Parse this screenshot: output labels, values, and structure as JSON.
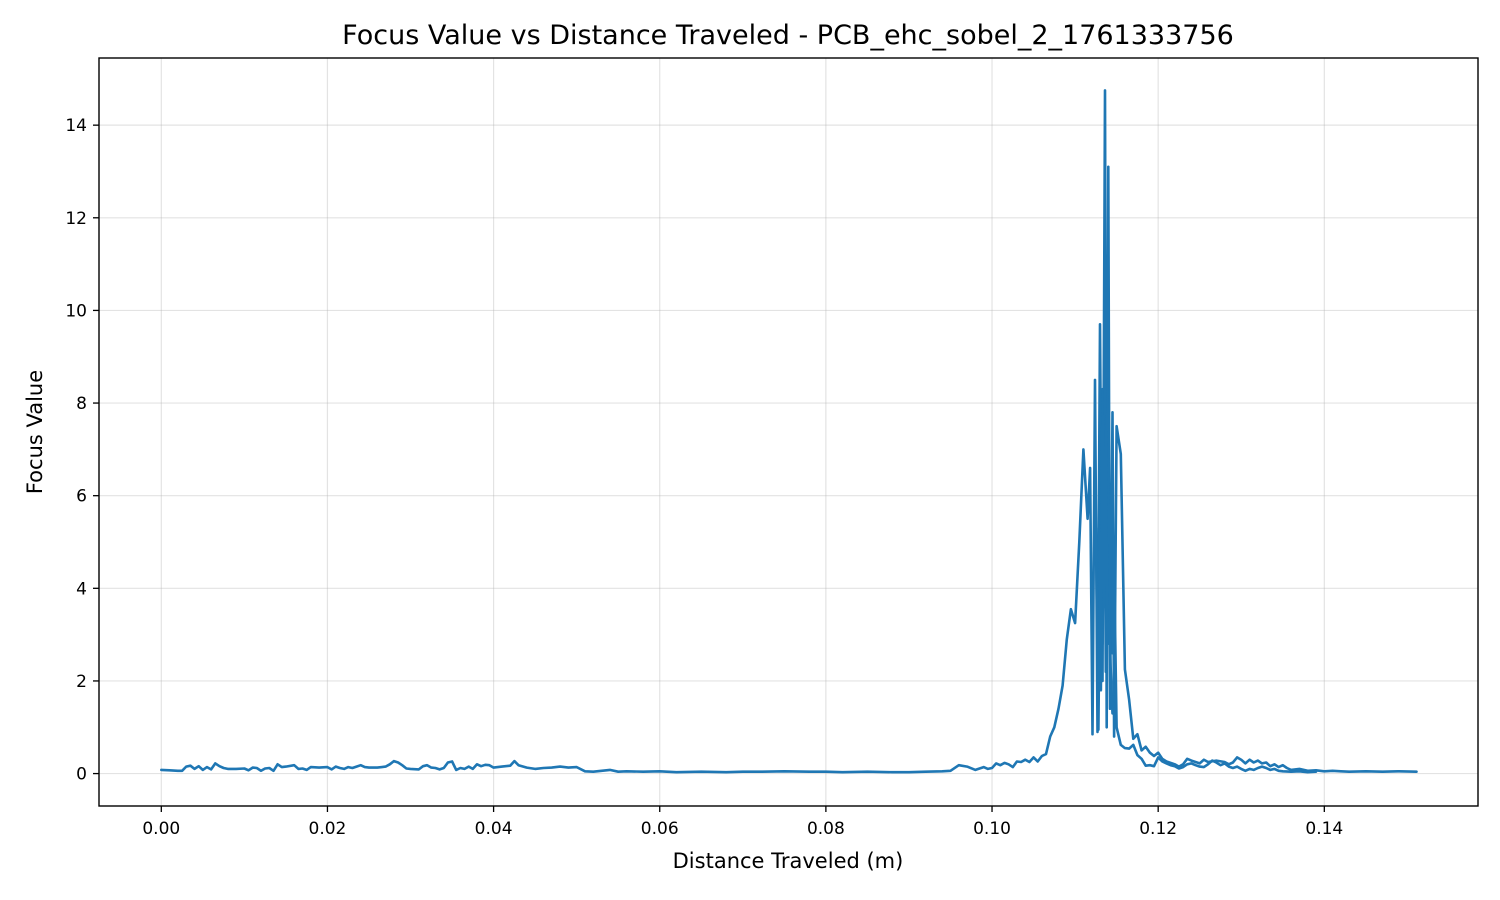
{
  "chart_data": {
    "type": "line",
    "title": "Focus Value vs Distance Traveled - PCB_ehc_sobel_2_1761333756",
    "xlabel": "Distance Traveled (m)",
    "ylabel": "Focus Value",
    "xlim": [
      -0.0075,
      0.1585
    ],
    "ylim": [
      -0.7,
      15.45
    ],
    "x_ticks": [
      0.0,
      0.02,
      0.04,
      0.06,
      0.08,
      0.1,
      0.12,
      0.14
    ],
    "x_tick_labels": [
      "0.00",
      "0.02",
      "0.04",
      "0.06",
      "0.08",
      "0.10",
      "0.12",
      "0.14"
    ],
    "y_ticks": [
      0,
      2,
      4,
      6,
      8,
      10,
      12,
      14
    ],
    "y_tick_labels": [
      "0",
      "2",
      "4",
      "6",
      "8",
      "10",
      "12",
      "14"
    ],
    "grid": true,
    "legend": "none",
    "series": [
      {
        "color": "#1f77b4",
        "points": [
          [
            0.0,
            0.08
          ],
          [
            0.001,
            0.07
          ],
          [
            0.002,
            0.06
          ],
          [
            0.0025,
            0.06
          ],
          [
            0.003,
            0.15
          ],
          [
            0.0035,
            0.17
          ],
          [
            0.004,
            0.1
          ],
          [
            0.0045,
            0.16
          ],
          [
            0.005,
            0.08
          ],
          [
            0.0055,
            0.14
          ],
          [
            0.006,
            0.09
          ],
          [
            0.0065,
            0.22
          ],
          [
            0.007,
            0.16
          ],
          [
            0.0075,
            0.12
          ],
          [
            0.008,
            0.1
          ],
          [
            0.009,
            0.1
          ],
          [
            0.01,
            0.11
          ],
          [
            0.0105,
            0.07
          ],
          [
            0.011,
            0.13
          ],
          [
            0.0115,
            0.12
          ],
          [
            0.012,
            0.06
          ],
          [
            0.0125,
            0.11
          ],
          [
            0.013,
            0.12
          ],
          [
            0.0135,
            0.06
          ],
          [
            0.014,
            0.2
          ],
          [
            0.0145,
            0.14
          ],
          [
            0.015,
            0.15
          ],
          [
            0.016,
            0.18
          ],
          [
            0.0165,
            0.1
          ],
          [
            0.017,
            0.11
          ],
          [
            0.0175,
            0.08
          ],
          [
            0.018,
            0.14
          ],
          [
            0.019,
            0.13
          ],
          [
            0.02,
            0.14
          ],
          [
            0.0205,
            0.09
          ],
          [
            0.021,
            0.15
          ],
          [
            0.0215,
            0.12
          ],
          [
            0.022,
            0.1
          ],
          [
            0.0225,
            0.14
          ],
          [
            0.023,
            0.12
          ],
          [
            0.0235,
            0.15
          ],
          [
            0.024,
            0.18
          ],
          [
            0.0245,
            0.14
          ],
          [
            0.025,
            0.13
          ],
          [
            0.026,
            0.13
          ],
          [
            0.027,
            0.15
          ],
          [
            0.0275,
            0.2
          ],
          [
            0.028,
            0.27
          ],
          [
            0.0285,
            0.24
          ],
          [
            0.029,
            0.18
          ],
          [
            0.0295,
            0.11
          ],
          [
            0.03,
            0.1
          ],
          [
            0.031,
            0.09
          ],
          [
            0.0315,
            0.16
          ],
          [
            0.032,
            0.18
          ],
          [
            0.0325,
            0.13
          ],
          [
            0.033,
            0.12
          ],
          [
            0.0335,
            0.09
          ],
          [
            0.034,
            0.12
          ],
          [
            0.0345,
            0.24
          ],
          [
            0.035,
            0.26
          ],
          [
            0.0355,
            0.08
          ],
          [
            0.036,
            0.12
          ],
          [
            0.0365,
            0.1
          ],
          [
            0.037,
            0.15
          ],
          [
            0.0375,
            0.1
          ],
          [
            0.038,
            0.2
          ],
          [
            0.0385,
            0.16
          ],
          [
            0.039,
            0.19
          ],
          [
            0.0395,
            0.18
          ],
          [
            0.04,
            0.13
          ],
          [
            0.041,
            0.15
          ],
          [
            0.042,
            0.17
          ],
          [
            0.0425,
            0.27
          ],
          [
            0.043,
            0.18
          ],
          [
            0.044,
            0.13
          ],
          [
            0.045,
            0.1
          ],
          [
            0.046,
            0.12
          ],
          [
            0.047,
            0.13
          ],
          [
            0.048,
            0.15
          ],
          [
            0.049,
            0.13
          ],
          [
            0.05,
            0.14
          ],
          [
            0.051,
            0.05
          ],
          [
            0.052,
            0.04
          ],
          [
            0.053,
            0.06
          ],
          [
            0.054,
            0.08
          ],
          [
            0.055,
            0.04
          ],
          [
            0.056,
            0.05
          ],
          [
            0.058,
            0.04
          ],
          [
            0.06,
            0.05
          ],
          [
            0.062,
            0.03
          ],
          [
            0.065,
            0.04
          ],
          [
            0.068,
            0.03
          ],
          [
            0.07,
            0.04
          ],
          [
            0.072,
            0.04
          ],
          [
            0.075,
            0.05
          ],
          [
            0.078,
            0.04
          ],
          [
            0.08,
            0.04
          ],
          [
            0.082,
            0.03
          ],
          [
            0.085,
            0.04
          ],
          [
            0.088,
            0.03
          ],
          [
            0.09,
            0.03
          ],
          [
            0.092,
            0.04
          ],
          [
            0.094,
            0.05
          ],
          [
            0.095,
            0.06
          ],
          [
            0.096,
            0.18
          ],
          [
            0.097,
            0.15
          ],
          [
            0.098,
            0.08
          ],
          [
            0.099,
            0.14
          ],
          [
            0.0995,
            0.1
          ],
          [
            0.1,
            0.12
          ],
          [
            0.1005,
            0.22
          ],
          [
            0.101,
            0.18
          ],
          [
            0.1015,
            0.23
          ],
          [
            0.102,
            0.2
          ],
          [
            0.1025,
            0.14
          ],
          [
            0.103,
            0.26
          ],
          [
            0.1035,
            0.25
          ],
          [
            0.104,
            0.3
          ],
          [
            0.1045,
            0.25
          ],
          [
            0.105,
            0.35
          ],
          [
            0.1055,
            0.26
          ],
          [
            0.106,
            0.38
          ],
          [
            0.1065,
            0.42
          ],
          [
            0.107,
            0.8
          ],
          [
            0.1075,
            1.0
          ],
          [
            0.108,
            1.4
          ],
          [
            0.1085,
            1.9
          ],
          [
            0.109,
            2.9
          ],
          [
            0.1095,
            3.55
          ],
          [
            0.11,
            3.25
          ],
          [
            0.1105,
            5.0
          ],
          [
            0.111,
            7.0
          ],
          [
            0.1115,
            5.5
          ],
          [
            0.1118,
            6.6
          ],
          [
            0.1121,
            0.85
          ],
          [
            0.1124,
            8.5
          ],
          [
            0.1127,
            0.9
          ],
          [
            0.113,
            9.7
          ],
          [
            0.1133,
            2.0
          ],
          [
            0.1136,
            14.75
          ],
          [
            0.1138,
            1.0
          ],
          [
            0.114,
            13.1
          ],
          [
            0.1142,
            1.4
          ],
          [
            0.1145,
            7.8
          ],
          [
            0.1147,
            0.8
          ],
          [
            0.115,
            7.5
          ],
          [
            0.1155,
            6.9
          ],
          [
            0.116,
            2.25
          ],
          [
            0.1165,
            1.6
          ],
          [
            0.117,
            0.75
          ],
          [
            0.1175,
            0.85
          ],
          [
            0.118,
            0.5
          ],
          [
            0.1185,
            0.58
          ],
          [
            0.119,
            0.45
          ],
          [
            0.1195,
            0.38
          ],
          [
            0.12,
            0.45
          ],
          [
            0.1205,
            0.32
          ],
          [
            0.121,
            0.26
          ],
          [
            0.122,
            0.2
          ],
          [
            0.1225,
            0.15
          ],
          [
            0.123,
            0.2
          ],
          [
            0.1235,
            0.32
          ],
          [
            0.124,
            0.28
          ],
          [
            0.125,
            0.22
          ],
          [
            0.1255,
            0.3
          ],
          [
            0.126,
            0.25
          ],
          [
            0.127,
            0.28
          ],
          [
            0.128,
            0.25
          ],
          [
            0.1285,
            0.2
          ],
          [
            0.129,
            0.24
          ],
          [
            0.1295,
            0.35
          ],
          [
            0.13,
            0.3
          ],
          [
            0.1305,
            0.22
          ],
          [
            0.131,
            0.3
          ],
          [
            0.1315,
            0.24
          ],
          [
            0.132,
            0.28
          ],
          [
            0.1325,
            0.22
          ],
          [
            0.133,
            0.24
          ],
          [
            0.1335,
            0.16
          ],
          [
            0.134,
            0.2
          ],
          [
            0.1345,
            0.14
          ],
          [
            0.135,
            0.18
          ],
          [
            0.1355,
            0.12
          ],
          [
            0.136,
            0.08
          ],
          [
            0.137,
            0.1
          ],
          [
            0.138,
            0.06
          ],
          [
            0.139,
            0.07
          ],
          [
            0.14,
            0.05
          ],
          [
            0.141,
            0.06
          ],
          [
            0.142,
            0.05
          ],
          [
            0.143,
            0.04
          ],
          [
            0.145,
            0.05
          ],
          [
            0.147,
            0.04
          ],
          [
            0.149,
            0.05
          ],
          [
            0.1511,
            0.04
          ]
        ]
      },
      {
        "color": "#1f77b4",
        "points": [
          [
            0.1125,
            5.3
          ],
          [
            0.1128,
            0.95
          ],
          [
            0.1131,
            6.6
          ],
          [
            0.1133,
            2.8
          ],
          [
            0.1135,
            7.6
          ],
          [
            0.1137,
            2.2
          ],
          [
            0.1139,
            8.5
          ],
          [
            0.1141,
            3.3
          ],
          [
            0.1143,
            5.8
          ],
          [
            0.1145,
            2.6
          ],
          [
            0.1147,
            4.5
          ],
          [
            0.115,
            1.0
          ],
          [
            0.1155,
            0.62
          ],
          [
            0.116,
            0.55
          ],
          [
            0.1165,
            0.54
          ],
          [
            0.117,
            0.62
          ],
          [
            0.1175,
            0.4
          ],
          [
            0.118,
            0.32
          ],
          [
            0.1185,
            0.17
          ],
          [
            0.119,
            0.18
          ],
          [
            0.1195,
            0.16
          ],
          [
            0.12,
            0.35
          ],
          [
            0.1205,
            0.26
          ],
          [
            0.121,
            0.22
          ],
          [
            0.1215,
            0.18
          ],
          [
            0.122,
            0.16
          ],
          [
            0.1225,
            0.11
          ],
          [
            0.123,
            0.14
          ],
          [
            0.1235,
            0.2
          ],
          [
            0.124,
            0.22
          ],
          [
            0.1245,
            0.18
          ],
          [
            0.125,
            0.15
          ],
          [
            0.1255,
            0.14
          ],
          [
            0.126,
            0.2
          ],
          [
            0.1265,
            0.28
          ],
          [
            0.127,
            0.24
          ],
          [
            0.1275,
            0.18
          ],
          [
            0.128,
            0.22
          ],
          [
            0.1285,
            0.15
          ],
          [
            0.129,
            0.12
          ],
          [
            0.1295,
            0.15
          ],
          [
            0.13,
            0.1
          ],
          [
            0.1305,
            0.06
          ],
          [
            0.131,
            0.1
          ],
          [
            0.1315,
            0.08
          ],
          [
            0.132,
            0.12
          ],
          [
            0.1325,
            0.15
          ],
          [
            0.133,
            0.12
          ],
          [
            0.1335,
            0.08
          ],
          [
            0.134,
            0.1
          ],
          [
            0.1345,
            0.06
          ],
          [
            0.135,
            0.05
          ],
          [
            0.136,
            0.04
          ],
          [
            0.137,
            0.05
          ],
          [
            0.138,
            0.03
          ],
          [
            0.139,
            0.04
          ]
        ]
      },
      {
        "color": "#1f77b4",
        "points": [
          [
            0.1129,
            5.2
          ],
          [
            0.1131,
            1.8
          ],
          [
            0.1133,
            8.3
          ],
          [
            0.1135,
            3.6
          ],
          [
            0.1137,
            7.4
          ],
          [
            0.1139,
            2.8
          ],
          [
            0.1141,
            3.2
          ],
          [
            0.1143,
            2.2
          ],
          [
            0.1145,
            1.3
          ]
        ]
      }
    ]
  }
}
